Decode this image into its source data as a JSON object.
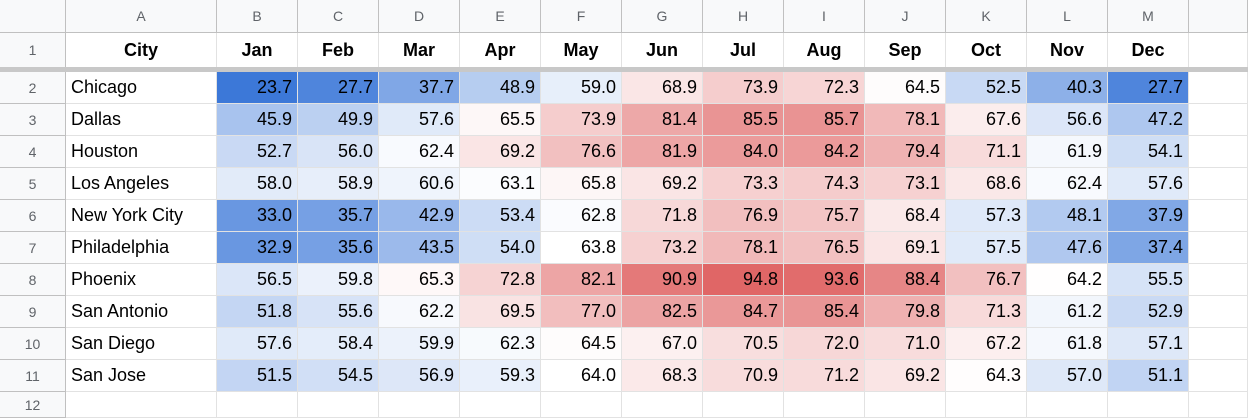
{
  "column_letters": [
    "A",
    "B",
    "C",
    "D",
    "E",
    "F",
    "G",
    "H",
    "I",
    "J",
    "K",
    "L",
    "M"
  ],
  "row_numbers": [
    "1",
    "2",
    "3",
    "4",
    "5",
    "6",
    "7",
    "8",
    "9",
    "10",
    "11",
    "12"
  ],
  "table": {
    "header": [
      "City",
      "Jan",
      "Feb",
      "Mar",
      "Apr",
      "May",
      "Jun",
      "Jul",
      "Aug",
      "Sep",
      "Oct",
      "Nov",
      "Dec"
    ],
    "rows": [
      [
        "Chicago",
        "23.7",
        "27.7",
        "37.7",
        "48.9",
        "59.0",
        "68.9",
        "73.9",
        "72.3",
        "64.5",
        "52.5",
        "40.3",
        "27.7"
      ],
      [
        "Dallas",
        "45.9",
        "49.9",
        "57.6",
        "65.5",
        "73.9",
        "81.4",
        "85.5",
        "85.7",
        "78.1",
        "67.6",
        "56.6",
        "47.2"
      ],
      [
        "Houston",
        "52.7",
        "56.0",
        "62.4",
        "69.2",
        "76.6",
        "81.9",
        "84.0",
        "84.2",
        "79.4",
        "71.1",
        "61.9",
        "54.1"
      ],
      [
        "Los Angeles",
        "58.0",
        "58.9",
        "60.6",
        "63.1",
        "65.8",
        "69.2",
        "73.3",
        "74.3",
        "73.1",
        "68.6",
        "62.4",
        "57.6"
      ],
      [
        "New York City",
        "33.0",
        "35.7",
        "42.9",
        "53.4",
        "62.8",
        "71.8",
        "76.9",
        "75.7",
        "68.4",
        "57.3",
        "48.1",
        "37.9"
      ],
      [
        "Philadelphia",
        "32.9",
        "35.6",
        "43.5",
        "54.0",
        "63.8",
        "73.2",
        "78.1",
        "76.5",
        "69.1",
        "57.5",
        "47.6",
        "37.4"
      ],
      [
        "Phoenix",
        "56.5",
        "59.8",
        "65.3",
        "72.8",
        "82.1",
        "90.9",
        "94.8",
        "93.6",
        "88.4",
        "76.7",
        "64.2",
        "55.5"
      ],
      [
        "San Antonio",
        "51.8",
        "55.6",
        "62.2",
        "69.5",
        "77.0",
        "82.5",
        "84.7",
        "85.4",
        "79.8",
        "71.3",
        "61.2",
        "52.9"
      ],
      [
        "San Diego",
        "57.6",
        "58.4",
        "59.9",
        "62.3",
        "64.5",
        "67.0",
        "70.5",
        "72.0",
        "71.0",
        "67.2",
        "61.8",
        "57.1"
      ],
      [
        "San Jose",
        "51.5",
        "54.5",
        "56.9",
        "59.3",
        "64.0",
        "68.3",
        "70.9",
        "71.2",
        "69.2",
        "64.3",
        "57.0",
        "51.1"
      ]
    ]
  },
  "color_scale": {
    "min_color": "#3c78d8",
    "mid_color": "#ffffff",
    "max_color": "#e06666"
  }
}
